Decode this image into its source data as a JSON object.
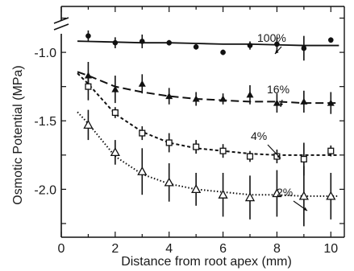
{
  "chart_data": {
    "type": "scatter",
    "title": "",
    "xlabel": "Distance from root apex (mm)",
    "ylabel": "Osmotic Potential (MPa)",
    "xlim": [
      0,
      10.5
    ],
    "ylim": [
      -2.35,
      -0.7
    ],
    "y_axis_break": true,
    "xticks": [
      0,
      2,
      4,
      6,
      8,
      10
    ],
    "yticks": [
      -1.0,
      -1.5,
      -2.0
    ],
    "ytick_labels": [
      "-1.0",
      "-1.5",
      "-2.0"
    ],
    "grid": false,
    "series": [
      {
        "name": "100%",
        "marker": "filled-circle",
        "line_style": "solid",
        "x": [
          1,
          2,
          3,
          4,
          5,
          6,
          7,
          8,
          9,
          10
        ],
        "y": [
          -0.88,
          -0.93,
          -0.92,
          -0.93,
          -0.96,
          -1.0,
          -0.95,
          -0.94,
          -0.97,
          -0.91
        ],
        "error": [
          0.04,
          0.04,
          0.05,
          0.02,
          0.02,
          0.02,
          0.03,
          0.05,
          0.09,
          0.02
        ],
        "fit_y": [
          -0.92,
          -0.925,
          -0.93,
          -0.93,
          -0.935,
          -0.94,
          -0.94,
          -0.945,
          -0.95,
          -0.95
        ]
      },
      {
        "name": "16%",
        "marker": "filled-triangle",
        "line_style": "dashed",
        "x": [
          1,
          2,
          3,
          4,
          5,
          6,
          7,
          8,
          9,
          10
        ],
        "y": [
          -1.17,
          -1.27,
          -1.23,
          -1.32,
          -1.34,
          -1.34,
          -1.31,
          -1.37,
          -1.36,
          -1.37
        ],
        "error": [
          0.1,
          0.1,
          0.07,
          0.06,
          0.05,
          0.04,
          0.07,
          0.07,
          0.08,
          0.08
        ],
        "fit_y": [
          -1.17,
          -1.25,
          -1.29,
          -1.32,
          -1.34,
          -1.35,
          -1.36,
          -1.36,
          -1.37,
          -1.37
        ]
      },
      {
        "name": "4%",
        "marker": "open-square",
        "line_style": "short-dashed",
        "x": [
          1,
          2,
          3,
          4,
          5,
          6,
          7,
          8,
          9,
          10
        ],
        "y": [
          -1.25,
          -1.44,
          -1.59,
          -1.66,
          -1.69,
          -1.72,
          -1.76,
          -1.76,
          -1.78,
          -1.72
        ],
        "error": [
          0.1,
          0.04,
          0.05,
          0.07,
          0.05,
          0.05,
          0.04,
          0.05,
          0.12,
          0.04
        ],
        "fit_y": [
          -1.23,
          -1.45,
          -1.58,
          -1.66,
          -1.7,
          -1.72,
          -1.74,
          -1.75,
          -1.75,
          -1.75
        ]
      },
      {
        "name": "2%",
        "marker": "open-triangle",
        "line_style": "dotted",
        "x": [
          1,
          2,
          3,
          4,
          5,
          6,
          7,
          8,
          9,
          10
        ],
        "y": [
          -1.53,
          -1.73,
          -1.87,
          -1.95,
          -2.0,
          -2.04,
          -2.06,
          -2.03,
          -2.05,
          -2.05
        ],
        "error": [
          0.11,
          0.09,
          0.17,
          0.14,
          0.12,
          0.16,
          0.16,
          0.17,
          0.22,
          0.17
        ],
        "fit_y": [
          -1.52,
          -1.76,
          -1.89,
          -1.96,
          -2.0,
          -2.02,
          -2.04,
          -2.04,
          -2.05,
          -2.05
        ]
      }
    ],
    "annotations": [
      "100%",
      "16%",
      "4%",
      "2%"
    ]
  }
}
